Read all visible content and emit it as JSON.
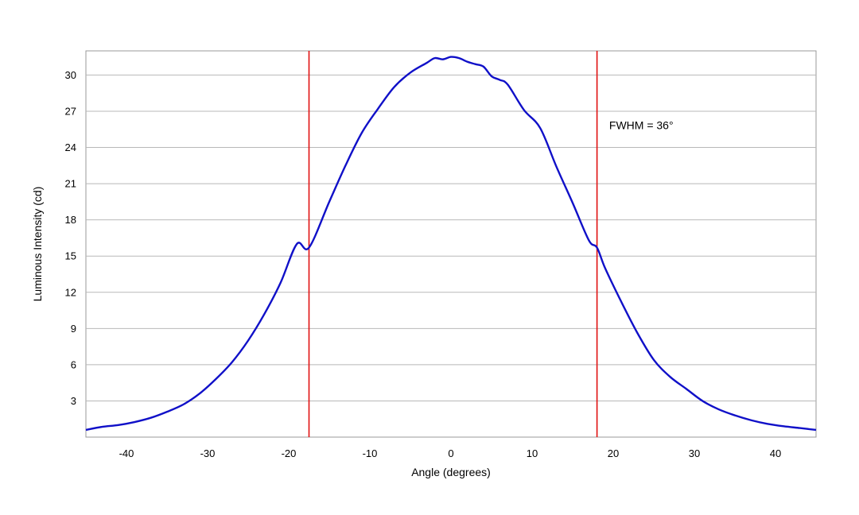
{
  "chart_data": {
    "type": "line",
    "title": "",
    "xlabel": "Angle (degrees)",
    "ylabel": "Luminous Intensity (cd)",
    "xlim": [
      -45,
      45
    ],
    "ylim": [
      0,
      32
    ],
    "grid": {
      "horizontal": true,
      "vertical": false
    },
    "x_ticks": [
      -40,
      -30,
      -20,
      -10,
      0,
      10,
      20,
      30,
      40
    ],
    "y_ticks": [
      3,
      6,
      9,
      12,
      15,
      18,
      21,
      24,
      27,
      30
    ],
    "x_tick_labels": [
      "-40",
      "-30",
      "-20",
      "-10",
      "0",
      "10",
      "20",
      "30",
      "40"
    ],
    "y_tick_labels": [
      "3",
      "6",
      "9",
      "12",
      "15",
      "18",
      "21",
      "24",
      "27",
      "30"
    ],
    "series": [
      {
        "color": "#1010c8",
        "x": [
          -45,
          -43,
          -41,
          -39,
          -37,
          -35,
          -33,
          -31,
          -29,
          -27,
          -25,
          -23,
          -21,
          -19,
          -17.5,
          -15,
          -13,
          -11,
          -9,
          -7,
          -5,
          -3,
          -2,
          -1,
          0,
          1,
          2,
          3,
          4,
          5,
          6,
          7,
          9,
          11,
          13,
          15,
          17,
          18,
          19,
          21,
          23,
          25,
          27,
          29,
          31,
          33,
          35,
          37,
          39,
          41,
          43,
          45
        ],
        "y": [
          0.6,
          0.85,
          1.0,
          1.25,
          1.6,
          2.1,
          2.7,
          3.6,
          4.8,
          6.2,
          8.0,
          10.2,
          12.8,
          16.0,
          15.7,
          19.5,
          22.5,
          25.2,
          27.2,
          29.0,
          30.2,
          31.0,
          31.4,
          31.3,
          31.5,
          31.4,
          31.1,
          30.9,
          30.7,
          29.9,
          29.6,
          29.2,
          27.1,
          25.6,
          22.4,
          19.4,
          16.3,
          15.7,
          14.0,
          11.2,
          8.6,
          6.4,
          5.0,
          4.0,
          3.0,
          2.3,
          1.8,
          1.4,
          1.1,
          0.9,
          0.75,
          0.6
        ]
      }
    ],
    "reference_lines": [
      {
        "axis": "x",
        "value": -17.5,
        "color": "#e01010"
      },
      {
        "axis": "x",
        "value": 18,
        "color": "#e01010"
      }
    ],
    "annotations": [
      {
        "text": "FWHM = 36°",
        "x": 19.5,
        "y": 25.5
      }
    ]
  }
}
